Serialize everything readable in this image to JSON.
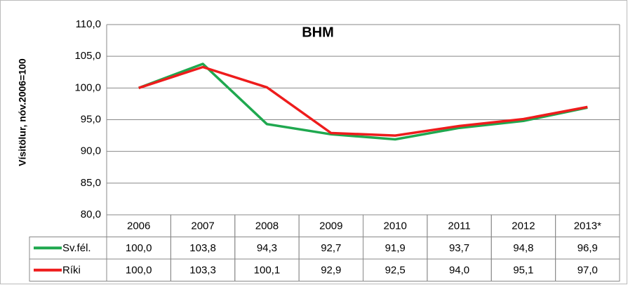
{
  "chart_data": {
    "type": "line",
    "title": "BHM",
    "y_label": "Vísitölur, nóv.2006=100",
    "categories": [
      "2006",
      "2007",
      "2008",
      "2009",
      "2010",
      "2011",
      "2012",
      "2013*"
    ],
    "series": [
      {
        "name": "Sv.fél.",
        "color": "#1fa84f",
        "values": [
          100.0,
          103.8,
          94.3,
          92.7,
          91.9,
          93.7,
          94.8,
          96.9
        ],
        "value_labels": [
          "100,0",
          "103,8",
          "94,3",
          "92,7",
          "91,9",
          "93,7",
          "94,8",
          "96,9"
        ]
      },
      {
        "name": "Ríki",
        "color": "#ee1c1c",
        "values": [
          100.0,
          103.3,
          100.1,
          92.9,
          92.5,
          94.0,
          95.1,
          97.0
        ],
        "value_labels": [
          "100,0",
          "103,3",
          "100,1",
          "92,9",
          "92,5",
          "94,0",
          "95,1",
          "97,0"
        ]
      }
    ],
    "ylim": [
      80,
      110
    ],
    "yticks": [
      {
        "value": 80,
        "label": "80,0"
      },
      {
        "value": 85,
        "label": "85,0"
      },
      {
        "value": 90,
        "label": "90,0"
      },
      {
        "value": 95,
        "label": "95,0"
      },
      {
        "value": 100,
        "label": "100,0"
      },
      {
        "value": 105,
        "label": "105,0"
      },
      {
        "value": 110,
        "label": "110,0"
      }
    ],
    "grid": true,
    "data_table": true
  }
}
